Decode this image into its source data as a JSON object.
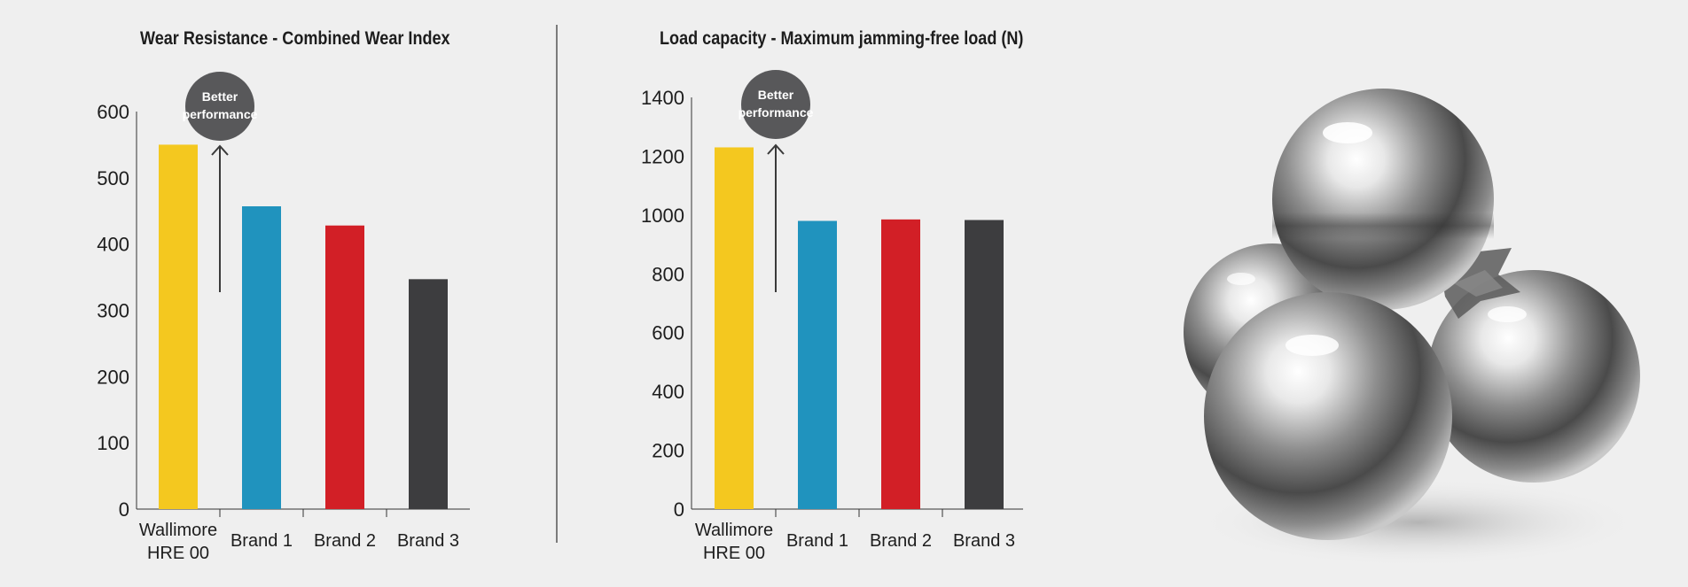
{
  "chart_data": [
    {
      "type": "bar",
      "title": "Wear Resistance - Combined Wear Index",
      "categories": [
        "Wallimore HRE 00",
        "Brand 1",
        "Brand 2",
        "Brand 3"
      ],
      "category_lines": [
        [
          "Wallimore",
          "HRE 00"
        ],
        [
          "Brand 1"
        ],
        [
          "Brand 2"
        ],
        [
          "Brand 3"
        ]
      ],
      "values": [
        550,
        457,
        428,
        347
      ],
      "colors": [
        "#f4c81f",
        "#2093be",
        "#d21f26",
        "#3d3d3f"
      ],
      "ylim": [
        0,
        600
      ],
      "yticks": [
        0,
        100,
        200,
        300,
        400,
        500,
        600
      ],
      "xlabel": "",
      "ylabel": "",
      "grid": false,
      "annotation": {
        "lines": [
          "Better",
          "performance"
        ],
        "color": "#58585a"
      }
    },
    {
      "type": "bar",
      "title": "Load capacity - Maximum jamming-free load (N)",
      "categories": [
        "Wallimore HRE 00",
        "Brand 1",
        "Brand 2",
        "Brand 3"
      ],
      "category_lines": [
        [
          "Wallimore",
          "HRE 00"
        ],
        [
          "Brand 1"
        ],
        [
          "Brand 2"
        ],
        [
          "Brand 3"
        ]
      ],
      "values": [
        1230,
        980,
        985,
        983
      ],
      "colors": [
        "#f4c81f",
        "#2093be",
        "#d21f26",
        "#3d3d3f"
      ],
      "ylim": [
        0,
        1400
      ],
      "yticks": [
        0,
        200,
        400,
        600,
        800,
        1000,
        1200,
        1400
      ],
      "xlabel": "",
      "ylabel": "",
      "grid": false,
      "annotation": {
        "lines": [
          "Better",
          "performance"
        ],
        "color": "#58585a"
      }
    }
  ],
  "image": {
    "icon": "steel-balls-photo",
    "description_icon": "steel-ball-icon"
  }
}
